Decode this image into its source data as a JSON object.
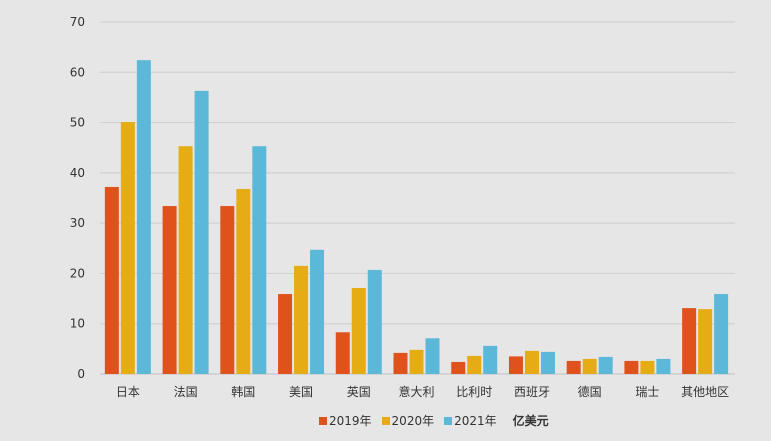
{
  "chart_data": {
    "type": "bar",
    "title": "",
    "xlabel": "",
    "ylabel": "",
    "unit": "亿美元",
    "ylim": [
      0,
      70
    ],
    "yticks": [
      0,
      10,
      20,
      30,
      40,
      50,
      60,
      70
    ],
    "grid": true,
    "legend_position": "bottom",
    "categories": [
      "日本",
      "法国",
      "韩国",
      "美国",
      "英国",
      "意大利",
      "比利时",
      "西班牙",
      "德国",
      "瑞士",
      "其他地区"
    ],
    "series": [
      {
        "name": "2019年",
        "color": "#e0521c",
        "values": [
          37.2,
          33.4,
          33.4,
          15.9,
          8.3,
          4.2,
          2.4,
          3.5,
          2.6,
          2.6,
          13.1
        ]
      },
      {
        "name": "2020年",
        "color": "#e6ac14",
        "values": [
          50.1,
          45.3,
          36.8,
          21.5,
          17.1,
          4.8,
          3.6,
          4.6,
          3.0,
          2.6,
          12.9
        ]
      },
      {
        "name": "2021年",
        "color": "#5bb8d8",
        "values": [
          62.4,
          56.3,
          45.3,
          24.7,
          20.7,
          7.1,
          5.6,
          4.4,
          3.4,
          3.0,
          15.9
        ]
      }
    ]
  },
  "legend": {
    "items": [
      {
        "label": "2019年",
        "color": "#e0521c"
      },
      {
        "label": "2020年",
        "color": "#e6ac14"
      },
      {
        "label": "2021年",
        "color": "#5bb8d8"
      }
    ],
    "unit": "亿美元"
  }
}
